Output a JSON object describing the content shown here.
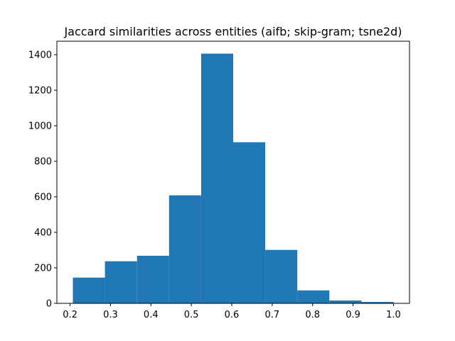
{
  "chart_data": {
    "type": "bar",
    "title": "Jaccard similarities across entities (aifb; skip-gram; tsne2d)",
    "xlabel": "",
    "ylabel": "",
    "bin_edges": [
      0.207,
      0.2863,
      0.3656,
      0.4449,
      0.5242,
      0.6035,
      0.6828,
      0.7621,
      0.8414,
      0.9207,
      1.0
    ],
    "values": [
      145,
      237,
      268,
      608,
      1406,
      907,
      301,
      73,
      16,
      8
    ],
    "xlim": [
      0.1674,
      1.0396
    ],
    "ylim": [
      0,
      1476
    ],
    "xticks": [
      0.2,
      0.3,
      0.4,
      0.5,
      0.6,
      0.7,
      0.8,
      0.9,
      1.0
    ],
    "xtick_labels": [
      "0.2",
      "0.3",
      "0.4",
      "0.5",
      "0.6",
      "0.7",
      "0.8",
      "0.9",
      "1.0"
    ],
    "yticks": [
      0,
      200,
      400,
      600,
      800,
      1000,
      1200,
      1400
    ],
    "ytick_labels": [
      "0",
      "200",
      "400",
      "600",
      "800",
      "1000",
      "1200",
      "1400"
    ],
    "bar_color": "#1f77b4",
    "grid": false,
    "legend": "none"
  }
}
